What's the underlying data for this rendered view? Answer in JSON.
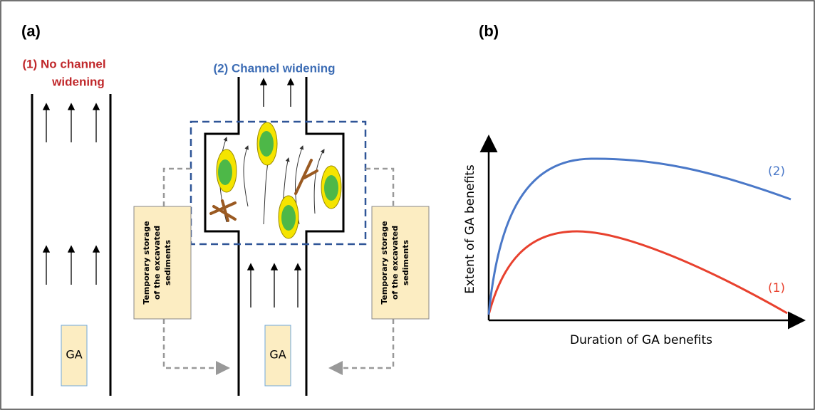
{
  "panels": {
    "a": {
      "label": "(a)",
      "scenario_1": {
        "lines": [
          "(1) No channel",
          "widening"
        ],
        "ga": "GA"
      },
      "scenario_2": {
        "title": "(2) Channel widening",
        "ga": "GA",
        "storage_boxes": [
          {
            "lines": [
              "Temporary storage",
              "of the excavated",
              "sediments"
            ]
          },
          {
            "lines": [
              "Temporary storage",
              "of the excavated",
              "sediments"
            ]
          }
        ]
      }
    },
    "b": {
      "label": "(b)",
      "y_axis_label": "Extent of GA benefits",
      "x_axis_label": "Duration of GA benefits",
      "curves": [
        {
          "label": "(1)",
          "color": "#e8412e"
        },
        {
          "label": "(2)",
          "color": "#4a78c8"
        }
      ]
    }
  }
}
